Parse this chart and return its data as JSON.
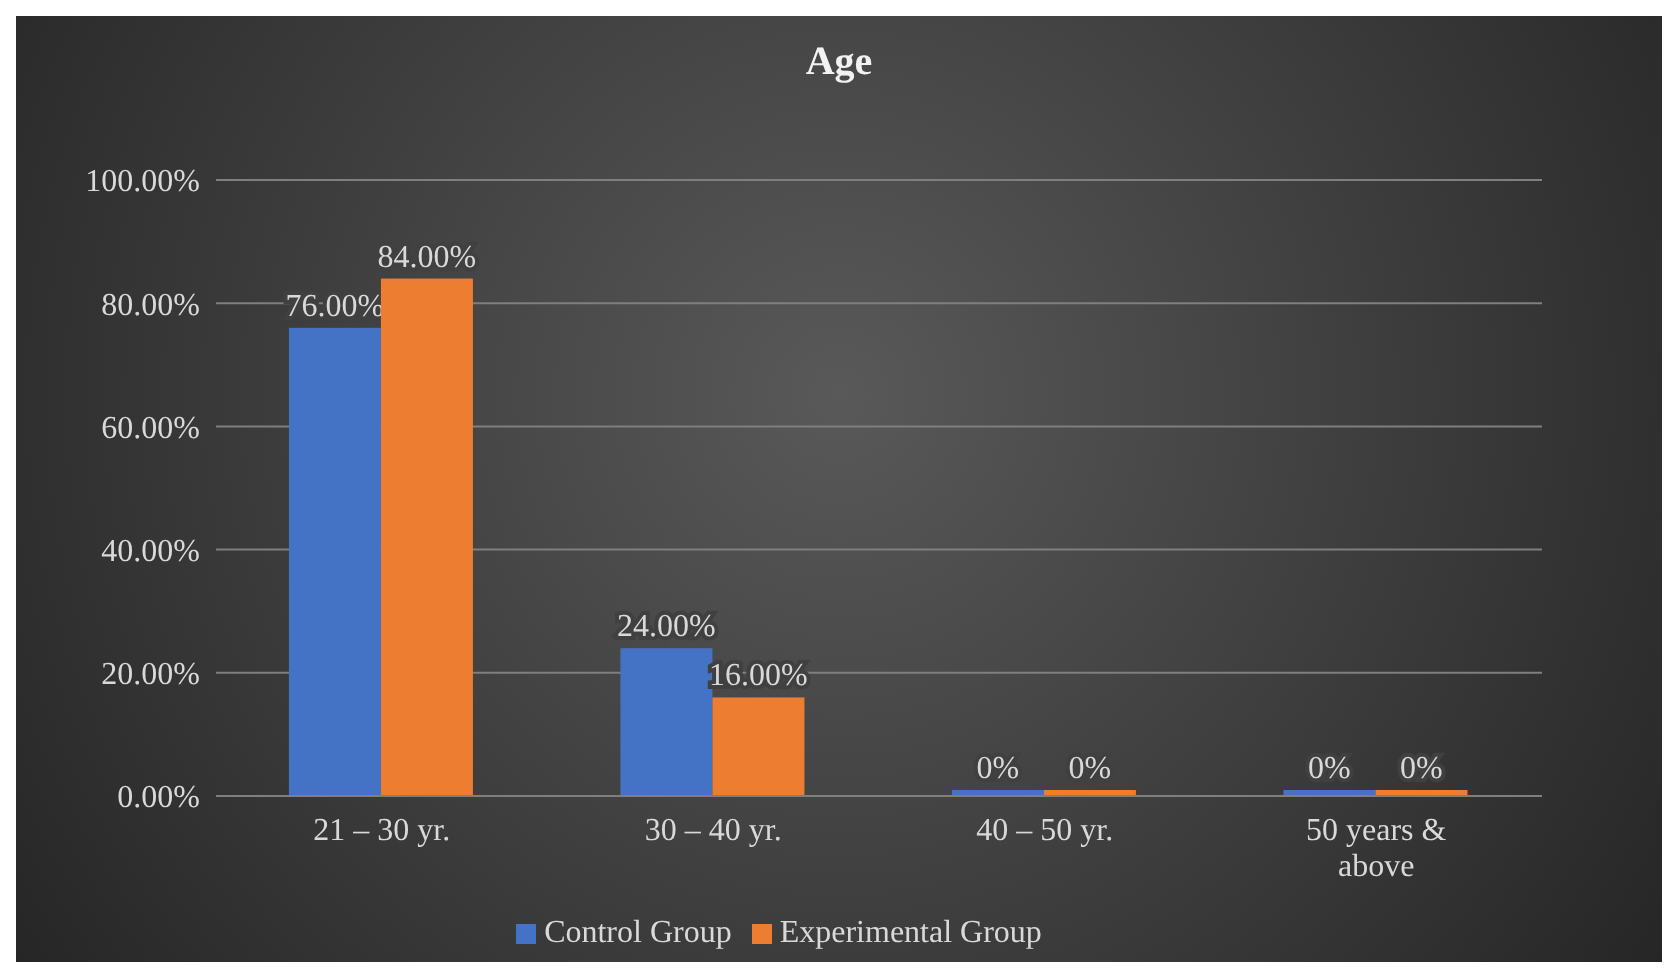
{
  "chart_data": {
    "type": "bar",
    "title": "Age",
    "categories": [
      "21 – 30 yr.",
      "30 – 40 yr.",
      "40 – 50 yr.",
      "50 years & above"
    ],
    "series": [
      {
        "name": "Control Group",
        "color": "#4472c4",
        "values": [
          76,
          24,
          0,
          0
        ],
        "value_labels": [
          "76.00%",
          "24.00%",
          "0%",
          "0%"
        ]
      },
      {
        "name": "Experimental Group",
        "color": "#ed7d31",
        "values": [
          84,
          16,
          0,
          0
        ],
        "value_labels": [
          "84.00%",
          "16.00%",
          "0%",
          "0%"
        ]
      }
    ],
    "ylim": [
      0,
      100
    ],
    "yticks": [
      {
        "value": 0,
        "label": "0.00%"
      },
      {
        "value": 20,
        "label": "20.00%"
      },
      {
        "value": 40,
        "label": "40.00%"
      },
      {
        "value": 60,
        "label": "60.00%"
      },
      {
        "value": 80,
        "label": "80.00%"
      },
      {
        "value": 100,
        "label": "100.00%"
      }
    ],
    "grid": "y",
    "legend": "bottom"
  }
}
